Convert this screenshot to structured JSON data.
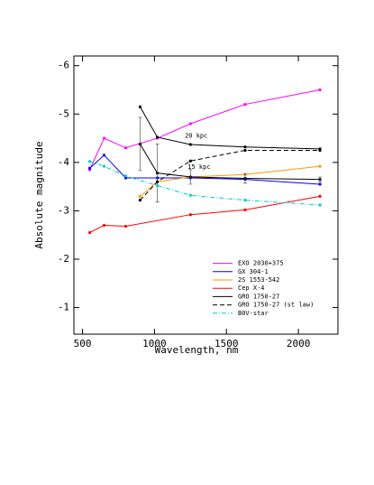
{
  "chart_data": {
    "type": "line",
    "x_label": "Wavelength, nm",
    "y_label": "Absolute magnitude",
    "xlim": [
      440,
      2275
    ],
    "xticks": [
      500,
      1000,
      1500,
      2000
    ],
    "ylim": [
      -0.45,
      -6.2
    ],
    "yticks": [
      -6,
      -5,
      -4,
      -3,
      -2,
      -1
    ],
    "legend": "lower right",
    "series": [
      {
        "name": "EXO 2030+375",
        "color": "#ff00ff",
        "dash": "solid",
        "x": [
          550,
          650,
          800,
          1020,
          1250,
          1630,
          2150
        ],
        "values": [
          -3.85,
          -4.5,
          -4.3,
          -4.5,
          -4.8,
          -5.2,
          -5.5
        ]
      },
      {
        "name": "GX 304-1",
        "color": "#0000ff",
        "dash": "solid",
        "x": [
          550,
          650,
          800,
          1020,
          1250,
          1630,
          2150
        ],
        "values": [
          -3.88,
          -4.15,
          -3.68,
          -3.68,
          -3.68,
          -3.65,
          -3.55
        ]
      },
      {
        "name": "2S 1553-542",
        "color": "#ff9900",
        "dash": "solid",
        "x": [
          900,
          1020,
          1250,
          1630,
          2150
        ],
        "values": [
          -3.3,
          -3.6,
          -3.7,
          -3.75,
          -3.92
        ]
      },
      {
        "name": "Cep X-4",
        "color": "#ff0000",
        "dash": "solid",
        "x": [
          550,
          650,
          800,
          1250,
          1630,
          2150
        ],
        "values": [
          -2.55,
          -2.7,
          -2.68,
          -2.92,
          -3.02,
          -3.3
        ]
      },
      {
        "name": "GRO 1750-27",
        "color": "#000000",
        "dash": "solid",
        "x": [
          900,
          1020,
          1250,
          1630,
          2150
        ],
        "values": [
          -5.15,
          -4.52,
          -4.37,
          -4.32,
          -4.28
        ]
      },
      {
        "color": "#000000",
        "dash": "solid",
        "x": [
          900,
          1020,
          1250,
          1630,
          2150
        ],
        "values": [
          -4.38,
          -3.78,
          -3.7,
          -3.67,
          -3.65
        ],
        "errors": [
          0.55,
          0.6,
          0.15,
          0.1,
          0.05
        ]
      },
      {
        "name": "GRO 1750-27 (st law)",
        "color": "#000000",
        "dash": "dashed",
        "x": [
          900,
          1020,
          1250,
          1630,
          2150
        ],
        "values": [
          -3.22,
          -3.6,
          -4.03,
          -4.25,
          -4.25
        ]
      },
      {
        "name": "B0V-star",
        "color": "#00cccc",
        "dash": "dashdot",
        "x": [
          550,
          650,
          800,
          1020,
          1250,
          1630,
          2150
        ],
        "values": [
          -4.02,
          -3.92,
          -3.72,
          -3.52,
          -3.32,
          -3.22,
          -3.12
        ]
      }
    ],
    "annotations": [
      {
        "text": "20 kpc",
        "x": 1290,
        "y": -4.55
      },
      {
        "text": "15 kpc",
        "x": 1310,
        "y": -3.9
      }
    ]
  }
}
